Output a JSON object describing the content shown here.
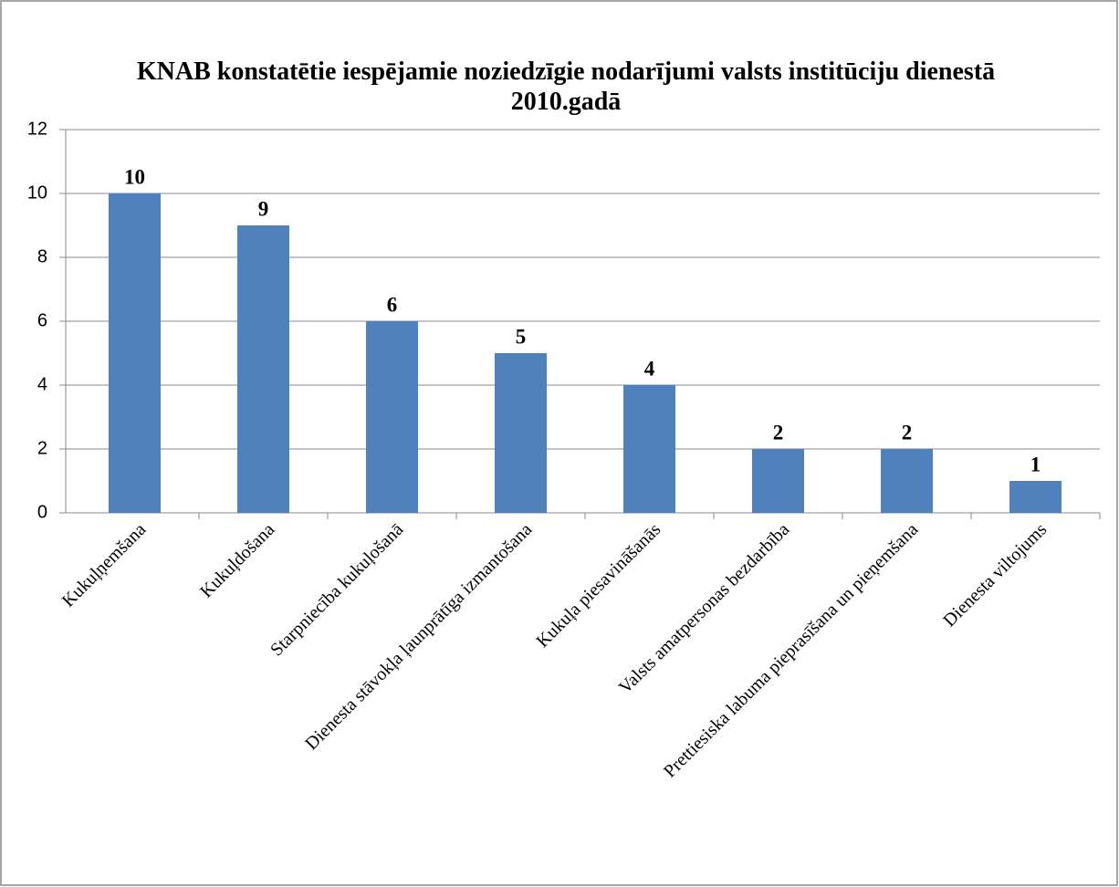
{
  "chart_data": {
    "type": "bar",
    "title": "KNAB konstatētie iespējamie noziedzīgie nodarījumi valsts institūciju dienestā 2010.gadā",
    "categories": [
      "Kukuļņemšana",
      "Kukuļdošana",
      "Starpniecība kukuļošanā",
      "Dienesta stāvokļa ļaunprātīga izmantošana",
      "Kukuļa piesavināšanās",
      "Valsts amatpersonas bezdarbība",
      "Prettiesiska labuma pieprasīšana un pieņemšana",
      "Dienesta viltojums"
    ],
    "values": [
      10,
      9,
      6,
      5,
      4,
      2,
      2,
      1
    ],
    "color": "#4f81bd",
    "ylim": [
      0,
      12
    ],
    "yticks": [
      0,
      2,
      4,
      6,
      8,
      10,
      12
    ],
    "grid": true
  }
}
